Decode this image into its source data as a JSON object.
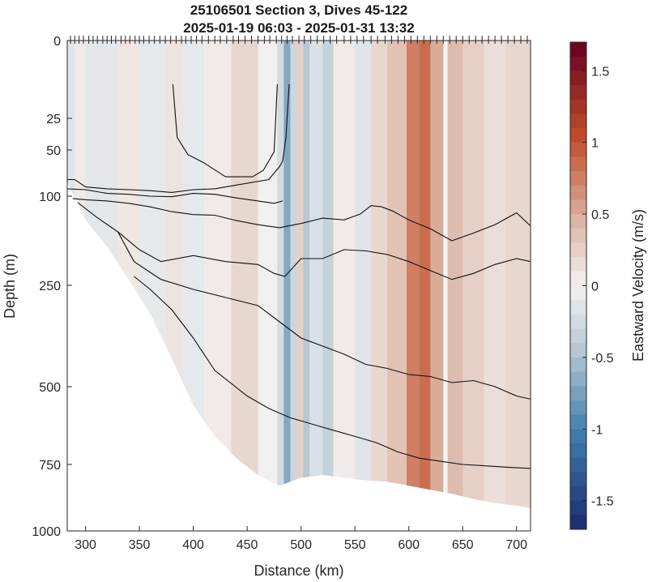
{
  "chart_data": {
    "type": "heatmap",
    "title": "25106501 Section 3, Dives 45-122",
    "subtitle": "2025-01-19 06:03 - 2025-01-31 13:32",
    "xlabel": "Distance (km)",
    "ylabel": "Depth (m)",
    "colorbar_label": "Eastward Velocity (m/s)",
    "xlim": [
      283,
      713
    ],
    "ylim": [
      0,
      1000
    ],
    "y_reversed": true,
    "y_scale": "nonlinear (stretched near surface)",
    "x_ticks": [
      300,
      350,
      400,
      450,
      500,
      550,
      600,
      650,
      700
    ],
    "x_tick_labels": [
      "300",
      "350",
      "400",
      "450",
      "500",
      "550",
      "600",
      "650",
      "700"
    ],
    "y_ticks": [
      0,
      25,
      50,
      100,
      250,
      500,
      750,
      1000
    ],
    "y_tick_labels": [
      "0",
      "25",
      "50",
      "100",
      "250",
      "500",
      "750",
      "1000"
    ],
    "colorbar_range": [
      -1.7,
      1.7
    ],
    "colorbar_ticks": [
      1.5,
      1,
      0.5,
      0,
      -0.5,
      -1,
      -1.5
    ],
    "colorbar_tick_labels": [
      "1.5",
      "1",
      "0.5",
      "0",
      "-0.5",
      "-1",
      "-1.5"
    ],
    "colormap": "diverging blue-white-red",
    "colors": {
      "negative": "#1a2a6e",
      "zero": "#f2f2f2",
      "positive": "#67001f"
    },
    "dive_marks_x": [
      286,
      290,
      294,
      298,
      303,
      307,
      311,
      316,
      320,
      324,
      328,
      333,
      337,
      341,
      346,
      350,
      354,
      359,
      364,
      369,
      374,
      379,
      384,
      389,
      393,
      398,
      403,
      408,
      414,
      420,
      425,
      431,
      437,
      442,
      448,
      454,
      460,
      466,
      471,
      477,
      482,
      487,
      492,
      498,
      503,
      509,
      515,
      521,
      527,
      533,
      540,
      546,
      552,
      558,
      565,
      571,
      578,
      584,
      590,
      596,
      602,
      608,
      614,
      620,
      626,
      632,
      638,
      644,
      650,
      656,
      662,
      668,
      674,
      680,
      686,
      692,
      698,
      704,
      710
    ],
    "velocity_bands": [
      {
        "x": [
          283,
          290
        ],
        "v": -0.15
      },
      {
        "x": [
          290,
          300
        ],
        "v": 0.05
      },
      {
        "x": [
          300,
          330
        ],
        "v": -0.12
      },
      {
        "x": [
          330,
          350
        ],
        "v": 0.08
      },
      {
        "x": [
          350,
          375
        ],
        "v": -0.1
      },
      {
        "x": [
          375,
          390
        ],
        "v": 0.1
      },
      {
        "x": [
          390,
          410
        ],
        "v": -0.1
      },
      {
        "x": [
          410,
          435
        ],
        "v": 0.05
      },
      {
        "x": [
          435,
          460
        ],
        "v": 0.2
      },
      {
        "x": [
          460,
          478
        ],
        "v": 0.02
      },
      {
        "x": [
          478,
          484
        ],
        "v": -0.25
      },
      {
        "x": [
          484,
          490
        ],
        "v": -0.7
      },
      {
        "x": [
          490,
          496
        ],
        "v": -0.3
      },
      {
        "x": [
          496,
          502
        ],
        "v": 0.25
      },
      {
        "x": [
          502,
          508
        ],
        "v": -0.45
      },
      {
        "x": [
          508,
          520
        ],
        "v": -0.2
      },
      {
        "x": [
          520,
          530
        ],
        "v": -0.35
      },
      {
        "x": [
          530,
          550
        ],
        "v": 0.05
      },
      {
        "x": [
          550,
          565
        ],
        "v": -0.15
      },
      {
        "x": [
          565,
          580
        ],
        "v": 0.2
      },
      {
        "x": [
          580,
          598
        ],
        "v": 0.35
      },
      {
        "x": [
          598,
          610
        ],
        "v": 0.75
      },
      {
        "x": [
          610,
          620
        ],
        "v": 0.85
      },
      {
        "x": [
          620,
          632
        ],
        "v": 0.5
      },
      {
        "x": [
          632,
          636
        ],
        "v": 0.0
      },
      {
        "x": [
          636,
          650
        ],
        "v": 0.4
      },
      {
        "x": [
          650,
          670
        ],
        "v": 0.25
      },
      {
        "x": [
          670,
          690
        ],
        "v": 0.15
      },
      {
        "x": [
          690,
          713
        ],
        "v": 0.2
      }
    ],
    "bottom_boundary": [
      {
        "x": 283,
        "depth": 85
      },
      {
        "x": 300,
        "depth": 140
      },
      {
        "x": 320,
        "depth": 185
      },
      {
        "x": 340,
        "depth": 240
      },
      {
        "x": 360,
        "depth": 320
      },
      {
        "x": 380,
        "depth": 430
      },
      {
        "x": 400,
        "depth": 560
      },
      {
        "x": 420,
        "depth": 660
      },
      {
        "x": 440,
        "depth": 730
      },
      {
        "x": 460,
        "depth": 790
      },
      {
        "x": 480,
        "depth": 830
      },
      {
        "x": 500,
        "depth": 800
      },
      {
        "x": 520,
        "depth": 790
      },
      {
        "x": 540,
        "depth": 800
      },
      {
        "x": 560,
        "depth": 810
      },
      {
        "x": 580,
        "depth": 815
      },
      {
        "x": 600,
        "depth": 830
      },
      {
        "x": 620,
        "depth": 845
      },
      {
        "x": 640,
        "depth": 860
      },
      {
        "x": 660,
        "depth": 880
      },
      {
        "x": 680,
        "depth": 895
      },
      {
        "x": 700,
        "depth": 905
      },
      {
        "x": 713,
        "depth": 915
      }
    ],
    "contour_lines": [
      {
        "points": [
          [
            381,
            14
          ],
          [
            385,
            40
          ],
          [
            395,
            55
          ],
          [
            410,
            64
          ],
          [
            430,
            79
          ],
          [
            455,
            79
          ],
          [
            465,
            72
          ],
          [
            475,
            52
          ],
          [
            478,
            14
          ]
        ]
      },
      {
        "points": [
          [
            489,
            14
          ],
          [
            486,
            40
          ],
          [
            483,
            62
          ],
          [
            480,
            68
          ],
          [
            470,
            82
          ],
          [
            440,
            88
          ],
          [
            420,
            92
          ],
          [
            400,
            93
          ],
          [
            380,
            96
          ],
          [
            360,
            94
          ],
          [
            340,
            93
          ],
          [
            320,
            92
          ],
          [
            300,
            90
          ],
          [
            290,
            82
          ],
          [
            283,
            82
          ]
        ]
      },
      {
        "points": [
          [
            283,
            92
          ],
          [
            300,
            93
          ],
          [
            320,
            97
          ],
          [
            340,
            98
          ],
          [
            360,
            100
          ],
          [
            380,
            101
          ],
          [
            400,
            97
          ],
          [
            420,
            98
          ],
          [
            440,
            103
          ],
          [
            460,
            108
          ],
          [
            475,
            112
          ],
          [
            483,
            108
          ]
        ]
      },
      {
        "points": [
          [
            288,
            104
          ],
          [
            300,
            106
          ],
          [
            320,
            108
          ],
          [
            340,
            112
          ],
          [
            360,
            118
          ],
          [
            380,
            126
          ],
          [
            400,
            131
          ],
          [
            420,
            132
          ],
          [
            440,
            141
          ],
          [
            460,
            148
          ],
          [
            480,
            153
          ],
          [
            500,
            146
          ],
          [
            520,
            137
          ],
          [
            540,
            140
          ],
          [
            555,
            130
          ],
          [
            565,
            116
          ],
          [
            575,
            118
          ],
          [
            585,
            125
          ],
          [
            600,
            140
          ],
          [
            620,
            155
          ],
          [
            640,
            175
          ],
          [
            660,
            162
          ],
          [
            680,
            148
          ],
          [
            700,
            128
          ],
          [
            713,
            150
          ]
        ]
      },
      {
        "points": [
          [
            293,
            111
          ],
          [
            310,
            135
          ],
          [
            330,
            160
          ],
          [
            350,
            190
          ],
          [
            370,
            210
          ],
          [
            400,
            200
          ],
          [
            430,
            210
          ],
          [
            460,
            215
          ],
          [
            475,
            230
          ],
          [
            485,
            235
          ],
          [
            500,
            205
          ],
          [
            520,
            205
          ],
          [
            540,
            190
          ],
          [
            560,
            192
          ],
          [
            580,
            198
          ],
          [
            600,
            210
          ],
          [
            620,
            225
          ],
          [
            640,
            240
          ],
          [
            660,
            230
          ],
          [
            680,
            215
          ],
          [
            700,
            205
          ],
          [
            713,
            210
          ]
        ]
      },
      {
        "points": [
          [
            330,
            160
          ],
          [
            345,
            210
          ],
          [
            370,
            240
          ],
          [
            400,
            260
          ],
          [
            430,
            280
          ],
          [
            460,
            300
          ],
          [
            480,
            340
          ],
          [
            500,
            380
          ],
          [
            520,
            400
          ],
          [
            540,
            420
          ],
          [
            560,
            445
          ],
          [
            580,
            455
          ],
          [
            600,
            470
          ],
          [
            620,
            475
          ],
          [
            640,
            490
          ],
          [
            660,
            485
          ],
          [
            680,
            500
          ],
          [
            700,
            530
          ],
          [
            713,
            540
          ]
        ]
      },
      {
        "points": [
          [
            345,
            235
          ],
          [
            360,
            260
          ],
          [
            380,
            310
          ],
          [
            400,
            380
          ],
          [
            420,
            460
          ],
          [
            450,
            530
          ],
          [
            470,
            570
          ],
          [
            490,
            600
          ],
          [
            510,
            620
          ],
          [
            530,
            640
          ],
          [
            550,
            660
          ],
          [
            570,
            680
          ],
          [
            590,
            710
          ],
          [
            610,
            730
          ],
          [
            630,
            740
          ],
          [
            650,
            750
          ],
          [
            670,
            755
          ],
          [
            690,
            760
          ],
          [
            713,
            765
          ]
        ]
      }
    ]
  }
}
